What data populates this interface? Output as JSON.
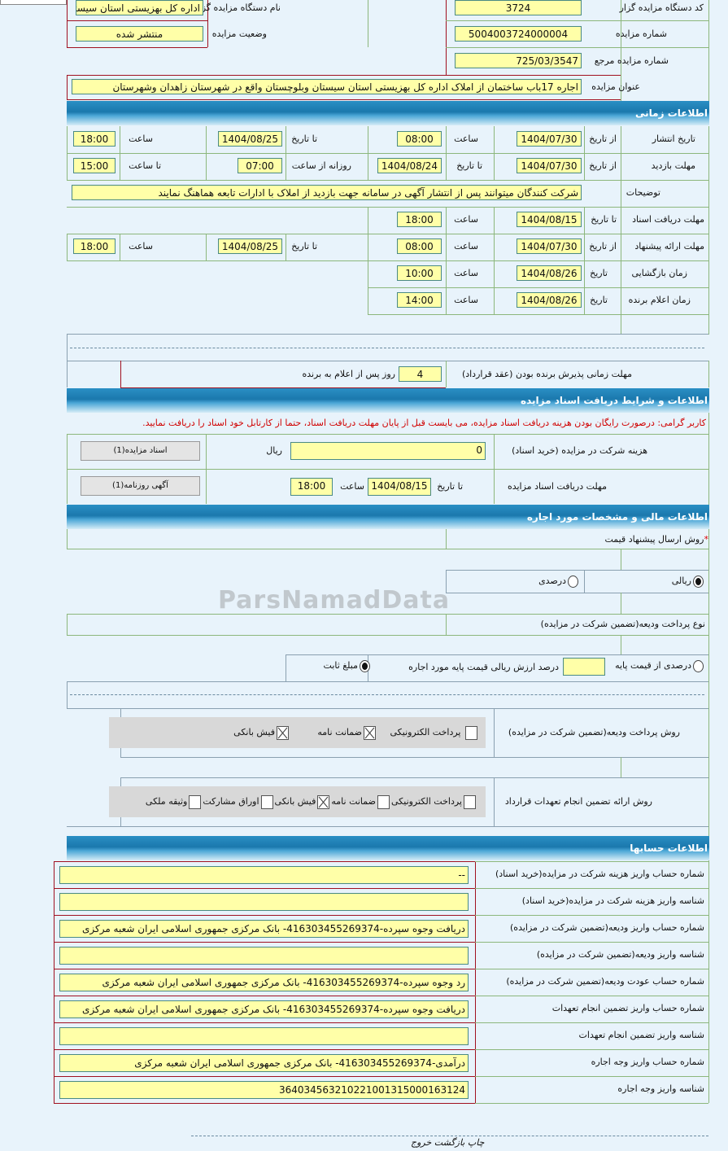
{
  "header": {
    "org_code_label": "کد دستگاه مزایده گزار",
    "org_code": "3724",
    "org_name_label": "نام دستگاه مزایده گزار",
    "org_name": "اداره کل بهزیستی استان سیستان",
    "auction_no_label": "شماره مزایده",
    "auction_no": "5004003724000004",
    "status_label": "وضعیت مزایده",
    "status": "منتشر شده",
    "ref_no_label": "شماره مزایده مرجع",
    "ref_no": "725/03/3547",
    "title_label": "عنوان مزایده",
    "title": "اجاره 17باب ساختمان از املاک اداره کل بهزیستی استان سیستان وبلوچستان واقع در شهرستان زاهدان وشهرستان"
  },
  "time": {
    "section": "اطلاعات زمانی",
    "from_date": "از تاریخ",
    "to_date": "تا تاریخ",
    "date": "تاریخ",
    "hour": "ساعت",
    "to_hour": "تا ساعت",
    "daily_from": "روزانه از ساعت",
    "publish": {
      "label": "تاریخ انتشار",
      "from": "1404/07/30",
      "from_time": "08:00",
      "to": "1404/08/25",
      "to_time": "18:00"
    },
    "visit": {
      "label": "مهلت بازدید",
      "from": "1404/07/30",
      "to": "1404/08/24",
      "daily_from": "07:00",
      "to_time": "15:00"
    },
    "notes": {
      "label": "توضیحات",
      "value": "شرکت کنندگان میتوانند پس از انتشار آگهی در سامانه جهت بازدید از املاک با ادارات تابعه هماهنگ نمایند"
    },
    "docs": {
      "label": "مهلت دریافت اسناد",
      "to": "1404/08/15",
      "time": "18:00"
    },
    "offer": {
      "label": "مهلت ارائه پیشنهاد",
      "from": "1404/07/30",
      "from_time": "08:00",
      "to": "1404/08/25",
      "to_time": "18:00"
    },
    "opening": {
      "label": "زمان بازگشایی",
      "date": "1404/08/26",
      "time": "10:00"
    },
    "winner": {
      "label": "زمان اعلام برنده",
      "date": "1404/08/26",
      "time": "14:00"
    },
    "accept": {
      "label": "مهلت زمانی پذیرش برنده بودن (عقد قرارداد)",
      "days": "4",
      "suffix": "روز پس از اعلام به برنده"
    }
  },
  "docs": {
    "section": "اطلاعات و شرایط دریافت اسناد مزایده",
    "notice": "کاربر گرامی: درصورت رایگان بودن هزینه دریافت اسناد مزایده، می بایست قبل از پایان مهلت دریافت اسناد، حتما از کارتابل خود اسناد را دریافت نمایید.",
    "fee_label": "هزینه شرکت در مزایده (خرید اسناد)",
    "fee": "0",
    "currency": "ریال",
    "docs_button": "اسناد مزایده(1)",
    "deadline_label": "مهلت دریافت اسناد مزایده",
    "to_date": "تا تاریخ",
    "to": "1404/08/15",
    "hour": "ساعت",
    "time": "18:00",
    "ad_button": "آگهی روزنامه(1)"
  },
  "finance": {
    "section": "اطلاعات مالی و مشخصات مورد اجاره",
    "price_method_label": "روش ارسال پیشنهاد قیمت",
    "required": "*",
    "rial": "ریالی",
    "percent": "درصدی",
    "rial_selected": true,
    "deposit_type_label": "نوع پرداخت ودیعه(تضمین شرکت در مزایده)",
    "percent_of_base": "درصدی از قیمت پایه",
    "percent_text": "درصد ارزش ریالی قیمت پایه مورد اجاره",
    "fixed": "مبلغ ثابت",
    "fixed_selected": true,
    "deposit_method_label": "روش پرداخت ودیعه(تضمین شرکت در مزایده)",
    "deposit_methods": [
      {
        "label": "پرداخت الکترونیکی",
        "checked": false
      },
      {
        "label": "ضمانت نامه",
        "checked": true
      },
      {
        "label": "فیش بانکی",
        "checked": true
      }
    ],
    "guarantee_label": "روش ارائه تضمین انجام تعهدات قرارداد",
    "guarantee_methods": [
      {
        "label": "پرداخت الکترونیکی",
        "checked": false
      },
      {
        "label": "ضمانت نامه",
        "checked": false
      },
      {
        "label": "فیش بانکی",
        "checked": true
      },
      {
        "label": "اوراق مشارکت",
        "checked": false
      },
      {
        "label": "وثیقه ملکی",
        "checked": false
      }
    ]
  },
  "accounts": {
    "section": "اطلاعات حسابها",
    "rows": [
      {
        "label": "شماره حساب واریز هزینه شرکت در مزایده(خرید اسناد)",
        "value": "--"
      },
      {
        "label": "شناسه واریز هزینه شرکت در مزایده(خرید اسناد)",
        "value": ""
      },
      {
        "label": "شماره حساب واریز ودیعه(تضمین شرکت در مزایده)",
        "value": "دریافت وجوه سپرده-416303455269374- بانک مرکزی جمهوری اسلامی ایران شعبه مرکزی"
      },
      {
        "label": "شناسه واریز ودیعه(تضمین شرکت در مزایده)",
        "value": ""
      },
      {
        "label": "شماره حساب عودت ودیعه(تضمین شرکت در مزایده)",
        "value": "رد وجوه سپرده-416303455269374- بانک مرکزی جمهوری اسلامی ایران شعبه مرکزی"
      },
      {
        "label": "شماره حساب واریز تضمین انجام تعهدات",
        "value": "دریافت وجوه سپرده-416303455269374- بانک مرکزی جمهوری اسلامی ایران شعبه مرکزی"
      },
      {
        "label": "شناسه واریز تضمین انجام تعهدات",
        "value": ""
      },
      {
        "label": "شماره حساب واریز وجه اجاره",
        "value": "درآمدی-416303455269374- بانک مرکزی جمهوری اسلامی ایران شعبه مرکزی"
      },
      {
        "label": "شناسه واریز وجه اجاره",
        "value": "364034563210221001315000163124"
      }
    ]
  },
  "footer": {
    "print": "چاپ",
    "back": "بازگشت",
    "exit": "خروج"
  },
  "watermark": "ParsNamadData",
  "colors": {
    "input_bg": "#ffffa8",
    "section_header": "#1b78ad",
    "notice": "#cc0000",
    "border_green": "#8cb77c",
    "border_red": "#a01020"
  }
}
